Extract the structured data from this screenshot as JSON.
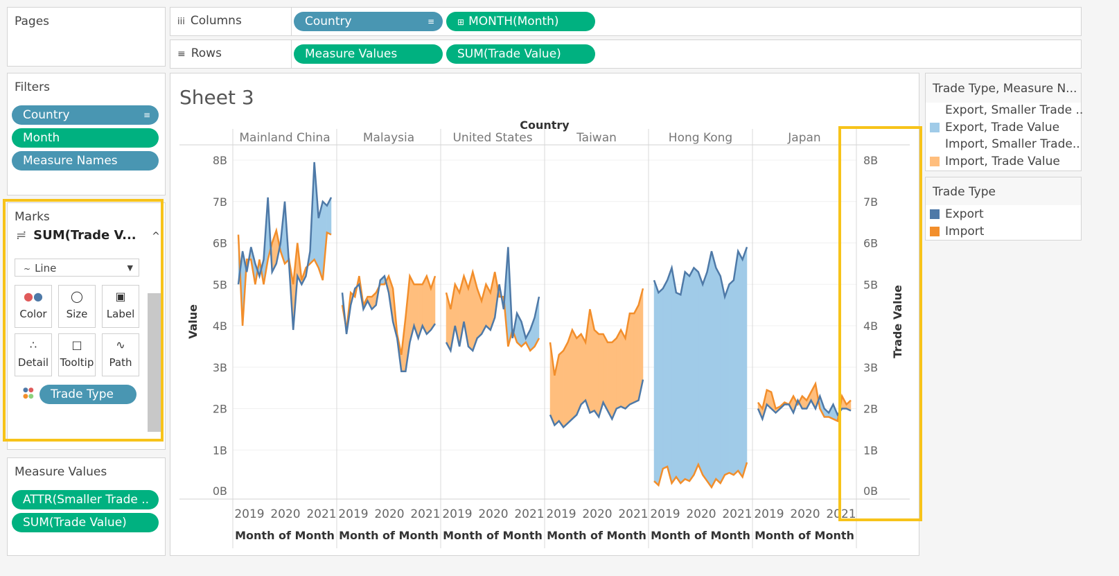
{
  "pages": {
    "title": "Pages"
  },
  "shelves": {
    "columns": {
      "label": "Columns",
      "icon": "columns-icon",
      "pills": [
        "Country",
        "MONTH(Month)"
      ]
    },
    "rows": {
      "label": "Rows",
      "icon": "rows-icon",
      "pills": [
        "Measure Values",
        "SUM(Trade Value)"
      ]
    }
  },
  "filters": {
    "title": "Filters",
    "pills": [
      "Country",
      "Month",
      "Measure Names"
    ]
  },
  "marks": {
    "title": "Marks",
    "current": "SUM(Trade V...",
    "type": "Line",
    "buttons": [
      "Color",
      "Size",
      "Label",
      "Detail",
      "Tooltip",
      "Path"
    ],
    "pill": "Trade Type"
  },
  "measure_values": {
    "title": "Measure Values",
    "pills": [
      "ATTR(Smaller Trade ..",
      "SUM(Trade Value)"
    ]
  },
  "legend1": {
    "title": "Trade Type, Measure N...",
    "items": [
      {
        "label": "Export, Smaller Trade ..",
        "color": ""
      },
      {
        "label": "Export, Trade Value",
        "color": "#a0cbe8"
      },
      {
        "label": "Import, Smaller Trade..",
        "color": ""
      },
      {
        "label": "Import, Trade Value",
        "color": "#ffbe7d"
      }
    ]
  },
  "legend2": {
    "title": "Trade Type",
    "items": [
      {
        "label": "Export",
        "color": "#4e79a7"
      },
      {
        "label": "Import",
        "color": "#f28e2b"
      }
    ]
  },
  "colors": {
    "highlight": "#f7c31a",
    "export": "#4e79a7",
    "import": "#f28e2b",
    "export_fill": "#a0cbe8",
    "import_fill": "#ffbe7d"
  },
  "chart_data": {
    "type": "area",
    "title": "Sheet 3",
    "column_header": "Country",
    "ylabel_left": "Value",
    "ylabel_right": "Trade Value",
    "xlabel": "Month of Month",
    "y_ticks": [
      "8B",
      "7B",
      "6B",
      "5B",
      "4B",
      "3B",
      "2B",
      "1B",
      "0B"
    ],
    "x_ticks": [
      "2019",
      "2020",
      "2021"
    ],
    "ylim": [
      0,
      8.3
    ],
    "panes": [
      {
        "country": "Mainland China",
        "export": [
          5.0,
          5.8,
          5.3,
          5.9,
          5.5,
          5.2,
          5.6,
          7.1,
          5.3,
          5.5,
          6.0,
          7.0,
          5.5,
          3.9,
          5.2,
          5.0,
          5.2,
          5.8,
          7.95,
          6.6,
          7.0,
          6.9,
          7.1
        ],
        "import": [
          6.2,
          4.0,
          5.6,
          5.6,
          5.0,
          5.6,
          5.0,
          5.6,
          6.0,
          6.3,
          5.8,
          5.5,
          5.6,
          5.0,
          6.0,
          5.1,
          5.4,
          5.5,
          5.6,
          5.4,
          5.1,
          6.25,
          6.2
        ]
      },
      {
        "country": "Malaysia",
        "export": [
          4.8,
          3.8,
          4.5,
          4.9,
          5.0,
          4.4,
          4.6,
          4.4,
          4.5,
          5.1,
          5.2,
          4.8,
          4.1,
          3.7,
          2.9,
          2.9,
          3.6,
          4.0,
          3.7,
          4.0,
          3.8,
          3.9,
          4.05
        ],
        "import": [
          4.5,
          3.9,
          4.8,
          4.7,
          5.2,
          4.5,
          4.7,
          4.7,
          4.8,
          5.0,
          5.0,
          5.2,
          4.9,
          3.8,
          3.3,
          4.2,
          5.2,
          5.0,
          5.0,
          5.0,
          5.2,
          4.9,
          5.2
        ]
      },
      {
        "country": "United States",
        "export": [
          3.6,
          3.4,
          4.0,
          3.5,
          4.1,
          3.5,
          3.4,
          3.7,
          3.8,
          4.0,
          3.9,
          4.2,
          5.0,
          4.4,
          5.9,
          3.7,
          4.3,
          4.1,
          3.7,
          3.9,
          4.2,
          4.7
        ],
        "import": [
          4.8,
          4.4,
          5.0,
          4.8,
          5.2,
          4.9,
          5.3,
          4.9,
          4.6,
          5.0,
          4.8,
          5.3,
          4.7,
          4.7,
          3.5,
          3.9,
          3.6,
          3.5,
          3.6,
          3.4,
          3.5,
          3.7
        ]
      },
      {
        "country": "Taiwan",
        "export": [
          1.85,
          1.6,
          1.7,
          1.55,
          1.65,
          1.75,
          1.85,
          2.1,
          2.2,
          1.9,
          1.95,
          1.8,
          2.15,
          1.95,
          1.75,
          2.0,
          2.05,
          2.0,
          2.1,
          2.15,
          2.2,
          2.7
        ],
        "import": [
          3.6,
          2.8,
          3.3,
          3.4,
          3.6,
          3.9,
          3.7,
          3.8,
          3.6,
          4.4,
          3.9,
          3.8,
          3.8,
          3.6,
          3.6,
          3.7,
          3.9,
          3.7,
          4.3,
          4.3,
          4.5,
          4.9
        ]
      },
      {
        "country": "Hong Kong",
        "export": [
          5.1,
          4.8,
          4.9,
          5.1,
          5.4,
          4.8,
          4.75,
          5.3,
          5.2,
          5.4,
          5.3,
          5.0,
          5.3,
          5.8,
          5.4,
          5.2,
          4.7,
          5.0,
          5.1,
          5.8,
          5.6,
          5.9
        ],
        "import": [
          0.25,
          0.15,
          0.55,
          0.6,
          0.2,
          0.35,
          0.2,
          0.3,
          0.25,
          0.4,
          0.65,
          0.4,
          0.25,
          0.1,
          0.3,
          0.2,
          0.4,
          0.45,
          0.4,
          0.5,
          0.35,
          0.7
        ]
      },
      {
        "country": "Japan",
        "export": [
          2.0,
          1.75,
          2.1,
          2.0,
          1.9,
          2.0,
          2.1,
          2.1,
          1.9,
          2.2,
          2.0,
          2.0,
          2.2,
          2.0,
          2.3,
          2.0,
          1.9,
          2.1,
          1.85,
          2.0,
          2.0,
          1.95
        ],
        "import": [
          2.15,
          2.0,
          2.45,
          2.4,
          2.0,
          2.05,
          2.15,
          2.1,
          2.3,
          2.1,
          2.3,
          2.2,
          2.4,
          2.6,
          2.0,
          1.8,
          1.8,
          1.75,
          1.7,
          2.3,
          2.1,
          2.2
        ]
      }
    ]
  }
}
